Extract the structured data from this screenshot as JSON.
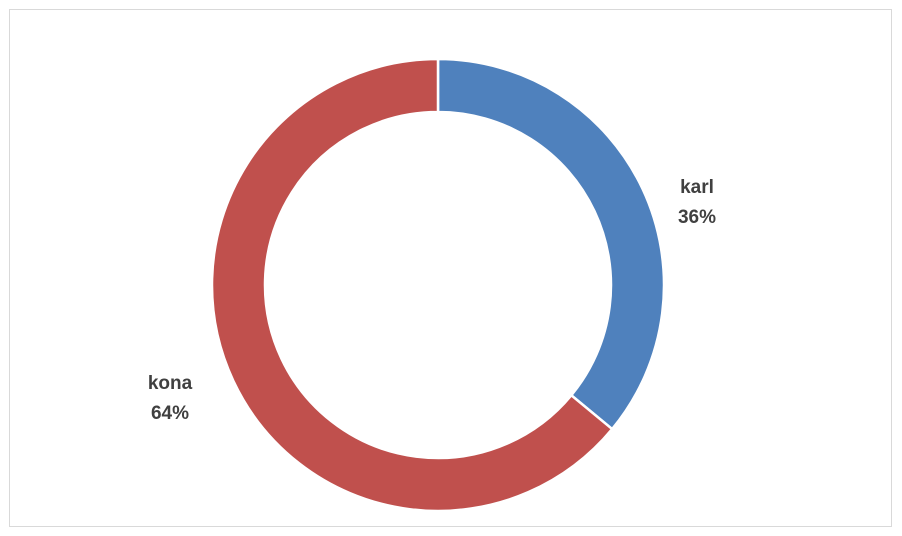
{
  "chart_data": {
    "type": "pie",
    "variant": "doughnut",
    "title": "",
    "legend": "none",
    "slices": [
      {
        "label": "karl",
        "percent_label": "36%",
        "value": 36,
        "color": "#4f81bd"
      },
      {
        "label": "kona",
        "percent_label": "64%",
        "value": 64,
        "color": "#c0504d"
      }
    ]
  }
}
